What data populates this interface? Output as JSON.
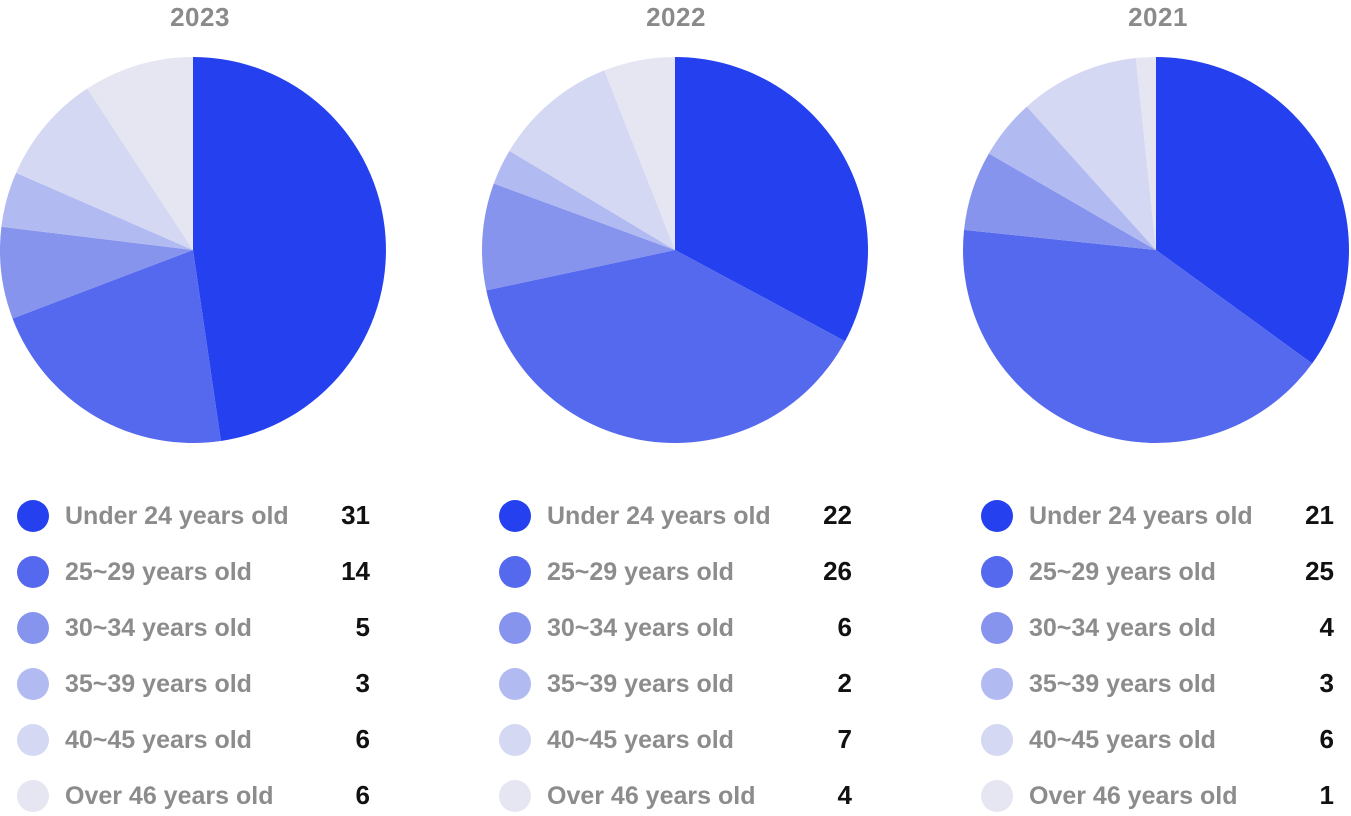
{
  "chart_data": [
    {
      "type": "pie",
      "title": "2023",
      "categories": [
        "Under 24 years old",
        "25~29 years old",
        "30~34 years old",
        "35~39 years old",
        "40~45 years old",
        "Over 46 years old"
      ],
      "values": [
        31,
        14,
        5,
        3,
        6,
        6
      ],
      "colors": [
        "#2541ef",
        "#5569ef",
        "#8694ee",
        "#b2baf2",
        "#d4d8f3",
        "#e5e6f2"
      ]
    },
    {
      "type": "pie",
      "title": "2022",
      "categories": [
        "Under 24 years old",
        "25~29 years old",
        "30~34 years old",
        "35~39 years old",
        "40~45 years old",
        "Over 46 years old"
      ],
      "values": [
        22,
        26,
        6,
        2,
        7,
        4
      ],
      "colors": [
        "#2541ef",
        "#5569ef",
        "#8694ee",
        "#b2baf2",
        "#d4d8f3",
        "#e5e6f2"
      ]
    },
    {
      "type": "pie",
      "title": "2021",
      "categories": [
        "Under 24 years old",
        "25~29 years old",
        "30~34 years old",
        "35~39 years old",
        "40~45 years old",
        "Over 46 years old"
      ],
      "values": [
        21,
        25,
        4,
        3,
        6,
        1
      ],
      "colors": [
        "#2541ef",
        "#5569ef",
        "#8694ee",
        "#b2baf2",
        "#d4d8f3",
        "#e5e6f2"
      ]
    }
  ]
}
